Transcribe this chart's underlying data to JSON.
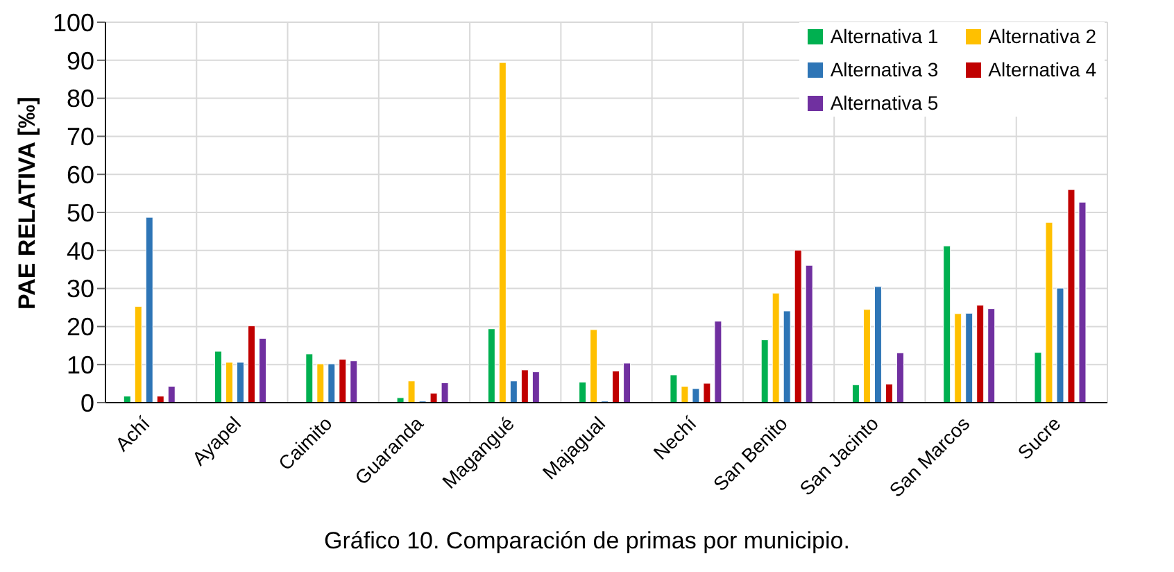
{
  "chart_data": {
    "type": "bar",
    "title": "Gráfico 10. Comparación de primas por municipio.",
    "ylabel": "PAE RELATIVA [‰]",
    "categories": [
      "Achí",
      "Ayapel",
      "Caimito",
      "Guaranda",
      "Magangué",
      "Majagual",
      "Nechí",
      "San Benito",
      "San Jacinto",
      "San Marcos",
      "Sucre"
    ],
    "series": [
      {
        "name": "Alternativa 1",
        "color": "#00b050",
        "values": [
          1.7,
          13.5,
          12.8,
          1.3,
          19.4,
          5.4,
          7.3,
          16.5,
          4.7,
          41.2,
          13.2
        ]
      },
      {
        "name": "Alternativa 2",
        "color": "#ffc000",
        "values": [
          25.3,
          10.6,
          10.2,
          5.7,
          89.4,
          19.2,
          4.3,
          28.8,
          24.5,
          23.4,
          47.4
        ]
      },
      {
        "name": "Alternativa 3",
        "color": "#2e75b6",
        "values": [
          48.7,
          10.6,
          10.2,
          0.4,
          5.7,
          0.4,
          3.7,
          24.1,
          30.5,
          23.5,
          30.1
        ]
      },
      {
        "name": "Alternativa 4",
        "color": "#c00000",
        "values": [
          1.7,
          20.2,
          11.4,
          2.5,
          8.6,
          8.3,
          5.1,
          40.1,
          4.9,
          25.6,
          56.0
        ]
      },
      {
        "name": "Alternativa 5",
        "color": "#7030a0",
        "values": [
          4.3,
          16.9,
          11.0,
          5.2,
          8.1,
          10.4,
          21.4,
          36.1,
          13.1,
          24.7,
          52.7
        ]
      }
    ],
    "ylim": [
      0,
      100
    ],
    "yticks": [
      0,
      10,
      20,
      30,
      40,
      50,
      60,
      70,
      80,
      90,
      100
    ],
    "grid": true,
    "legend": "top right"
  }
}
